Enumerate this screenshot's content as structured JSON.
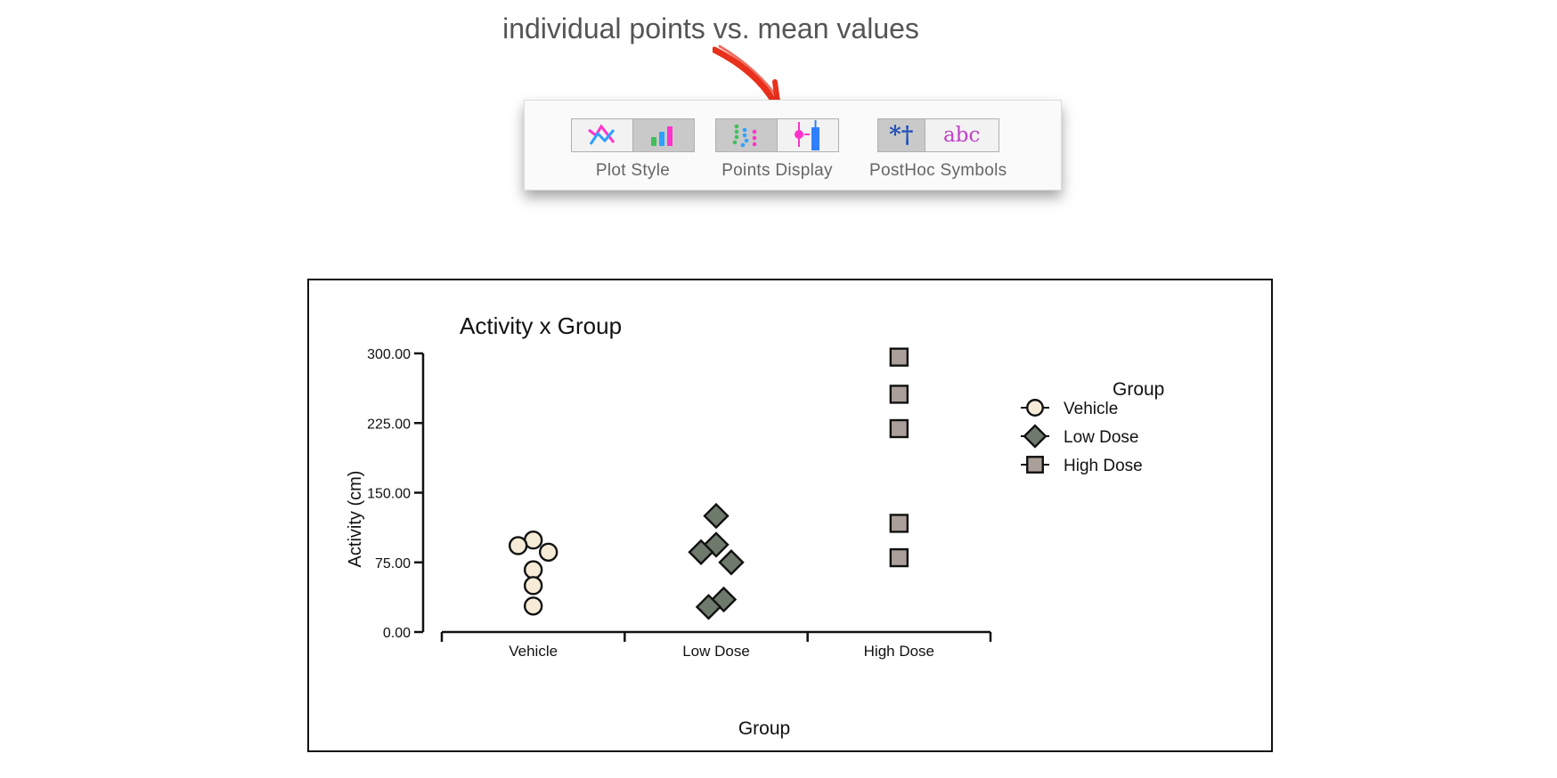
{
  "annotation": {
    "text": "individual points vs. mean values",
    "arrow_color": "#e8301c"
  },
  "toolbar": {
    "groups": [
      {
        "label": "Plot Style",
        "buttons": [
          {
            "icon": "line-plot-icon",
            "selected": false
          },
          {
            "icon": "bar-plot-icon",
            "selected": true
          }
        ]
      },
      {
        "label": "Points Display",
        "buttons": [
          {
            "icon": "individual-points-icon",
            "selected": true
          },
          {
            "icon": "mean-values-icon",
            "selected": false
          }
        ]
      },
      {
        "label": "PostHoc Symbols",
        "buttons": [
          {
            "icon": "asterisk-dagger-icon",
            "selected": true,
            "text": "*†"
          },
          {
            "icon": "letters-icon",
            "selected": false,
            "text": "abc"
          }
        ]
      }
    ]
  },
  "chart_data": {
    "type": "scatter",
    "title": "Activity x Group",
    "xlabel": "Group",
    "ylabel": "Activity (cm)",
    "ylim": [
      0,
      300
    ],
    "yticks": [
      "0.00",
      "75.00",
      "150.00",
      "225.00",
      "300.00"
    ],
    "categories": [
      "Vehicle",
      "Low Dose",
      "High Dose"
    ],
    "legend": {
      "title": "Group",
      "position": "right"
    },
    "series": [
      {
        "name": "Vehicle",
        "marker": "circle",
        "color": "#f5ebd6",
        "points": [
          {
            "x": "Vehicle",
            "y": 99,
            "offset": 0
          },
          {
            "x": "Vehicle",
            "y": 93,
            "offset": -1
          },
          {
            "x": "Vehicle",
            "y": 86,
            "offset": 1
          },
          {
            "x": "Vehicle",
            "y": 67,
            "offset": 0
          },
          {
            "x": "Vehicle",
            "y": 50,
            "offset": 0
          },
          {
            "x": "Vehicle",
            "y": 28,
            "offset": 0
          }
        ]
      },
      {
        "name": "Low Dose",
        "marker": "diamond",
        "color": "#6e7a6c",
        "points": [
          {
            "x": "Low Dose",
            "y": 125,
            "offset": 0
          },
          {
            "x": "Low Dose",
            "y": 94,
            "offset": 0
          },
          {
            "x": "Low Dose",
            "y": 86,
            "offset": -1
          },
          {
            "x": "Low Dose",
            "y": 75,
            "offset": 1
          },
          {
            "x": "Low Dose",
            "y": 35,
            "offset": 0.5
          },
          {
            "x": "Low Dose",
            "y": 27,
            "offset": -0.5
          }
        ]
      },
      {
        "name": "High Dose",
        "marker": "square",
        "color": "#ab9f99",
        "points": [
          {
            "x": "High Dose",
            "y": 296,
            "offset": 0
          },
          {
            "x": "High Dose",
            "y": 256,
            "offset": 0
          },
          {
            "x": "High Dose",
            "y": 219,
            "offset": 0
          },
          {
            "x": "High Dose",
            "y": 117,
            "offset": 0
          },
          {
            "x": "High Dose",
            "y": 80,
            "offset": 0
          }
        ]
      }
    ]
  }
}
